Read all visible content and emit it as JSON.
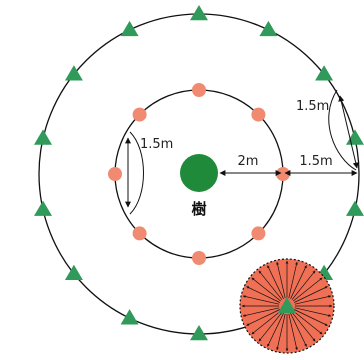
{
  "labels": {
    "tree": "樹",
    "inner_radius": "2m",
    "ring_gap": "1.5m",
    "inner_spacing": "1.5m",
    "outer_spacing": "1.5m"
  },
  "colors": {
    "tree_fill": "#1f8a3a",
    "small_circle_fill": "#f08a70",
    "triangle_fill": "#2f9a5a",
    "zoom_fill": "#f07055",
    "line": "#111111"
  },
  "inner_ring": {
    "marker": "small-circle",
    "marker_count": 8
  },
  "outer_ring": {
    "marker": "triangle",
    "marker_count": 14
  }
}
